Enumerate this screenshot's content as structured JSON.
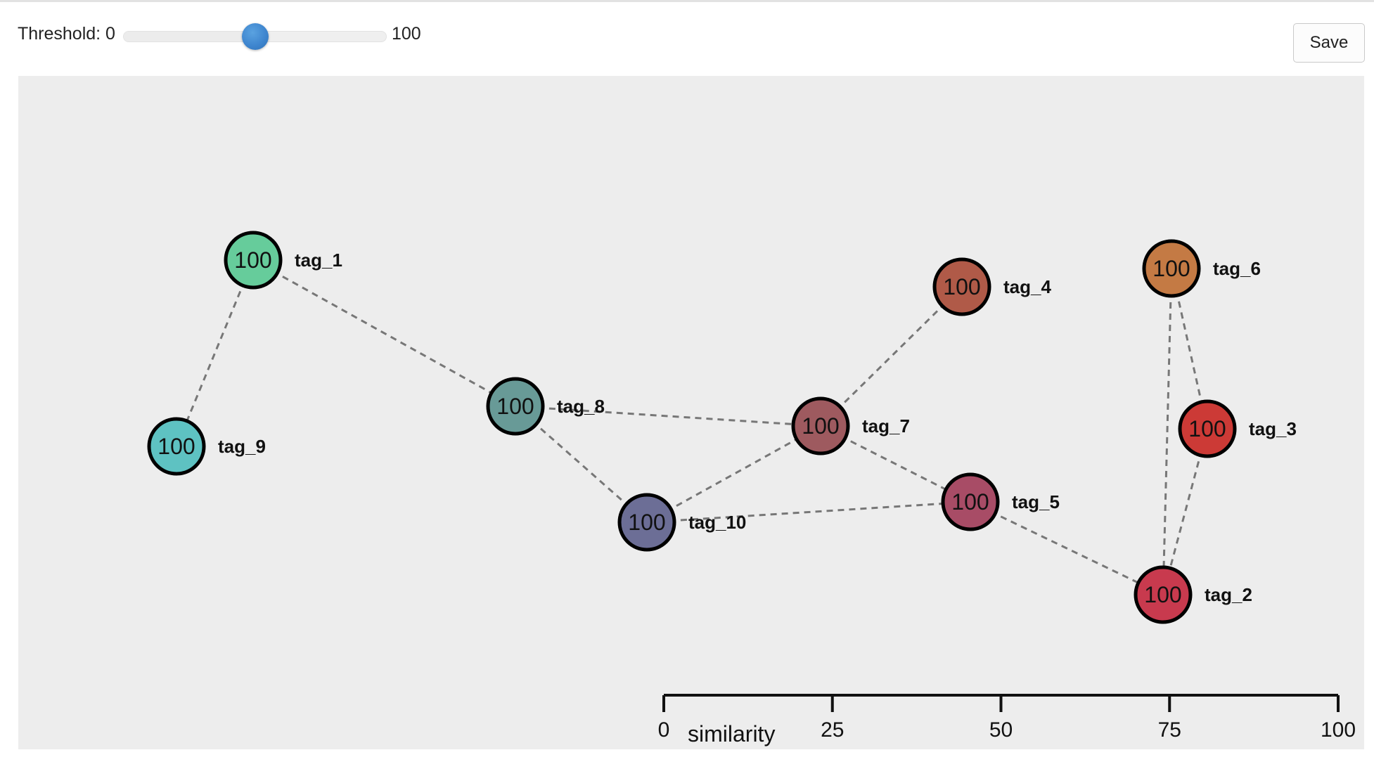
{
  "toolbar": {
    "threshold_label": "Threshold:",
    "threshold_min": "0",
    "threshold_max": "100",
    "slider_value": 50,
    "slider_min": 0,
    "slider_max": 100,
    "save_label": "Save"
  },
  "graph": {
    "node_value_label": "100",
    "nodes": [
      {
        "id": "tag_1",
        "label": "tag_1",
        "value": "100",
        "color": "#66cc9b"
      },
      {
        "id": "tag_2",
        "label": "tag_2",
        "value": "100",
        "color": "#c83a4e"
      },
      {
        "id": "tag_3",
        "label": "tag_3",
        "value": "100",
        "color": "#cc3a36"
      },
      {
        "id": "tag_4",
        "label": "tag_4",
        "value": "100",
        "color": "#b05a48"
      },
      {
        "id": "tag_5",
        "label": "tag_5",
        "value": "100",
        "color": "#a84c66"
      },
      {
        "id": "tag_6",
        "label": "tag_6",
        "value": "100",
        "color": "#c47a44"
      },
      {
        "id": "tag_7",
        "label": "tag_7",
        "value": "100",
        "color": "#9e5a5f"
      },
      {
        "id": "tag_8",
        "label": "tag_8",
        "value": "100",
        "color": "#689a97"
      },
      {
        "id": "tag_9",
        "label": "tag_9",
        "value": "100",
        "color": "#5ec2c2"
      },
      {
        "id": "tag_10",
        "label": "tag_10",
        "value": "100",
        "color": "#6c6e96"
      }
    ],
    "edges": [
      {
        "source": "tag_1",
        "target": "tag_9"
      },
      {
        "source": "tag_1",
        "target": "tag_8"
      },
      {
        "source": "tag_8",
        "target": "tag_7"
      },
      {
        "source": "tag_8",
        "target": "tag_10"
      },
      {
        "source": "tag_10",
        "target": "tag_7"
      },
      {
        "source": "tag_10",
        "target": "tag_5"
      },
      {
        "source": "tag_7",
        "target": "tag_4"
      },
      {
        "source": "tag_7",
        "target": "tag_5"
      },
      {
        "source": "tag_5",
        "target": "tag_2"
      },
      {
        "source": "tag_6",
        "target": "tag_3"
      },
      {
        "source": "tag_6",
        "target": "tag_2"
      },
      {
        "source": "tag_3",
        "target": "tag_2"
      }
    ]
  },
  "legend": {
    "title": "similarity",
    "ticks": [
      "0",
      "25",
      "50",
      "75",
      "100"
    ]
  }
}
